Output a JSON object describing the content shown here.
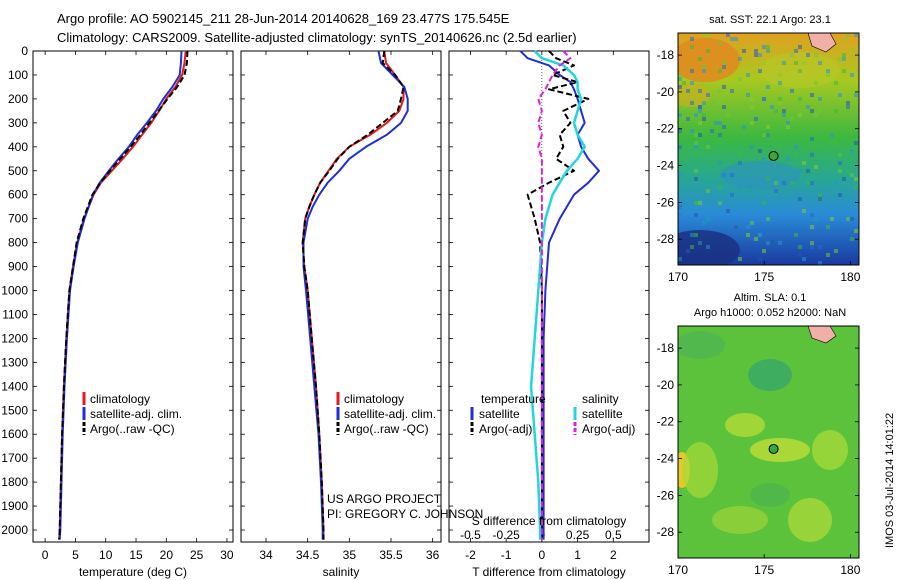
{
  "header": {
    "line1": "Argo profile: AO 5902145_211 28-Jun-2014 20140628_169 23.477S 175.545E",
    "line2": "Climatology: CARS2009. Satellite-adjusted climatology: synTS_20140626.nc (2.5d earlier)"
  },
  "credits": {
    "project": "US ARGO PROJECT",
    "pi": "PI: GREGORY C. JOHNSON",
    "stamp": "IMOS 03-Jul-2014 14:01:22"
  },
  "colors": {
    "climatology": "#e41a1c",
    "satellite": "#1f2fd6",
    "argo": "#000000",
    "sat_salinity": "#22d6e0",
    "argo_salinity": "#e020d8"
  },
  "chart_data": [
    {
      "id": "temperature",
      "type": "line",
      "xlabel": "temperature (deg C)",
      "ylabel": "",
      "xlim": [
        -2,
        31
      ],
      "ylim": [
        2050,
        0
      ],
      "xticks": [
        0,
        5,
        10,
        15,
        20,
        25,
        30
      ],
      "yticks": [
        0,
        100,
        200,
        300,
        400,
        500,
        600,
        700,
        800,
        900,
        1000,
        1100,
        1200,
        1300,
        1400,
        1500,
        1600,
        1700,
        1800,
        1900,
        2000
      ],
      "legend": [
        "climatology",
        "satellite-adj. clim.",
        "Argo(..raw -QC)"
      ],
      "depth": [
        0,
        50,
        100,
        150,
        200,
        250,
        300,
        350,
        400,
        450,
        500,
        550,
        600,
        700,
        800,
        900,
        1000,
        1200,
        1400,
        1600,
        1800,
        2000,
        2040
      ],
      "series": [
        {
          "name": "climatology",
          "values": [
            23.2,
            23.0,
            22.6,
            21.5,
            20.0,
            18.8,
            17.5,
            16.0,
            14.5,
            12.8,
            11.0,
            9.2,
            8.0,
            6.4,
            5.3,
            4.6,
            4.0,
            3.5,
            3.1,
            2.8,
            2.6,
            2.4,
            2.3
          ]
        },
        {
          "name": "satellite-adj. clim.",
          "values": [
            22.5,
            22.4,
            22.2,
            21.0,
            19.5,
            18.3,
            16.8,
            15.2,
            13.8,
            12.1,
            10.5,
            9.0,
            7.9,
            6.5,
            5.4,
            4.7,
            4.1,
            3.6,
            3.2,
            2.9,
            2.7,
            2.5,
            2.4
          ]
        },
        {
          "name": "Argo(..raw -QC)",
          "values": [
            23.5,
            23.4,
            23.0,
            21.8,
            20.2,
            18.7,
            17.2,
            15.7,
            14.1,
            12.4,
            10.7,
            9.1,
            7.8,
            6.3,
            5.2,
            4.6,
            4.0,
            3.5,
            3.1,
            2.8,
            2.6,
            2.4,
            2.3
          ]
        }
      ]
    },
    {
      "id": "salinity",
      "type": "line",
      "xlabel": "salinity",
      "ylabel": "",
      "xlim": [
        33.7,
        36.1
      ],
      "ylim": [
        2050,
        0
      ],
      "xticks": [
        34,
        34.5,
        35,
        35.5,
        36
      ],
      "xticklabels": [
        "34",
        "34.5",
        "35",
        "35.5",
        "36"
      ],
      "legend": [
        "climatology",
        "satellite-adj. clim.",
        "Argo(..raw -QC)"
      ],
      "depth": [
        0,
        50,
        100,
        150,
        200,
        250,
        300,
        350,
        400,
        450,
        500,
        550,
        600,
        650,
        700,
        800,
        900,
        1000,
        1200,
        1400,
        1600,
        1800,
        2000,
        2040
      ],
      "series": [
        {
          "name": "climatology",
          "values": [
            35.42,
            35.44,
            35.55,
            35.65,
            35.65,
            35.6,
            35.45,
            35.25,
            35.0,
            34.85,
            34.75,
            34.65,
            34.58,
            34.52,
            34.47,
            34.44,
            34.46,
            34.5,
            34.55,
            34.6,
            34.64,
            34.67,
            34.69,
            34.69
          ]
        },
        {
          "name": "satellite-adj. clim.",
          "values": [
            35.35,
            35.38,
            35.52,
            35.66,
            35.7,
            35.7,
            35.62,
            35.45,
            35.2,
            35.0,
            34.88,
            34.74,
            34.64,
            34.56,
            34.5,
            34.45,
            34.45,
            34.48,
            34.53,
            34.58,
            34.63,
            34.66,
            34.68,
            34.68
          ]
        },
        {
          "name": "Argo(..raw -QC)",
          "values": [
            35.42,
            35.4,
            35.55,
            35.65,
            35.62,
            35.58,
            35.4,
            35.22,
            35.0,
            34.86,
            34.76,
            34.65,
            34.58,
            34.52,
            34.47,
            34.44,
            34.46,
            34.5,
            34.55,
            34.6,
            34.64,
            34.67,
            34.69,
            34.69
          ]
        }
      ]
    },
    {
      "id": "differences",
      "type": "line",
      "xlabel": "T difference from climatology",
      "xlabel_top": "S difference from climatology",
      "xlim": [
        -2.6,
        3.0
      ],
      "ylim": [
        2050,
        0
      ],
      "xticks": [
        -2,
        -1,
        0,
        1,
        2
      ],
      "xticks_salinity": [
        -0.5,
        -0.25,
        0,
        0.25,
        0.5
      ],
      "xticklabels_salinity": [
        "-0.5",
        "-0.25",
        "0",
        "0.25",
        "0.5"
      ],
      "salinity_scale": 4,
      "legend_headers": [
        "temperature",
        "salinity"
      ],
      "legend": [
        "satellite",
        "Argo(-adj)",
        "satellite",
        "Argo(-adj)"
      ],
      "depth": [
        0,
        30,
        60,
        100,
        130,
        160,
        200,
        250,
        300,
        350,
        400,
        450,
        500,
        550,
        600,
        700,
        800,
        1000,
        1200,
        1400,
        1600,
        1800,
        2000,
        2040
      ],
      "series": [
        {
          "name": "T satellite",
          "values": [
            -0.6,
            -0.4,
            0.2,
            0.5,
            0.8,
            0.9,
            1.0,
            1.1,
            1.2,
            1.0,
            1.1,
            1.3,
            1.6,
            1.3,
            0.9,
            0.5,
            0.2,
            0.1,
            0.05,
            0.05,
            0.05,
            0.05,
            0.05,
            0.05
          ]
        },
        {
          "name": "T Argo(-adj)",
          "values": [
            0.2,
            0.4,
            0.9,
            0.3,
            1.0,
            0.2,
            1.3,
            0.6,
            0.8,
            0.5,
            0.6,
            0.4,
            0.9,
            0.2,
            -0.4,
            -0.2,
            -0.05,
            0.0,
            0.0,
            0.0,
            0.0,
            0.0,
            0.0,
            0.0
          ]
        },
        {
          "name": "S satellite",
          "values": [
            -0.2,
            0.0,
            0.6,
            0.9,
            1.0,
            1.0,
            1.1,
            1.0,
            0.9,
            1.0,
            1.2,
            1.0,
            0.7,
            0.5,
            0.3,
            0.1,
            0.0,
            -0.1,
            -0.2,
            -0.3,
            -0.2,
            -0.1,
            -0.05,
            -0.05
          ]
        },
        {
          "name": "S Argo(-adj)",
          "values": [
            0.6,
            0.8,
            0.5,
            0.3,
            0.2,
            0.1,
            -0.1,
            0.0,
            -0.1,
            0.0,
            -0.1,
            0.0,
            0.0,
            0.0,
            0.0,
            0.0,
            0.0,
            0.0,
            0.0,
            0.0,
            0.0,
            0.0,
            0.0,
            0.0
          ]
        }
      ]
    },
    {
      "id": "sst_map",
      "type": "heatmap",
      "title": "sat. SST: 22.1  Argo: 23.1",
      "xlim": [
        170,
        180.5
      ],
      "ylim": [
        -29.4,
        -16.8
      ],
      "xticks": [
        170,
        175,
        180
      ],
      "yticks": [
        -18,
        -20,
        -22,
        -24,
        -26,
        -28
      ],
      "argo_position": [
        175.545,
        -23.477
      ]
    },
    {
      "id": "sla_map",
      "type": "heatmap",
      "title": "Altim. SLA: 0.1",
      "subtitle": "Argo h1000: 0.052 h2000: NaN",
      "xlim": [
        170,
        180.5
      ],
      "ylim": [
        -29.4,
        -16.8
      ],
      "xticks": [
        170,
        175,
        180
      ],
      "yticks": [
        -18,
        -20,
        -22,
        -24,
        -26,
        -28
      ],
      "argo_position": [
        175.545,
        -23.477
      ]
    }
  ]
}
